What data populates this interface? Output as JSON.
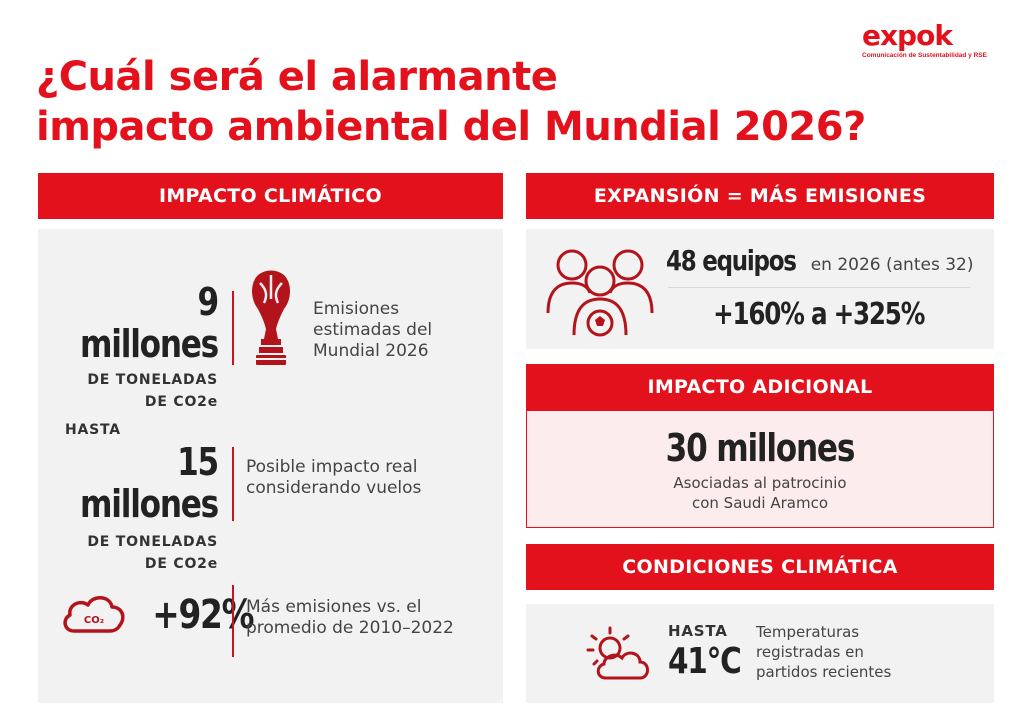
{
  "brand": {
    "name": "expok",
    "tagline": "Comunicación de Sustentabilidad y RSE"
  },
  "title": {
    "line1": "¿Cuál será el alarmante",
    "line2": "impacto ambiental del Mundial 2026?"
  },
  "climate_impact": {
    "header": "IMPACTO CLIMÁTICO",
    "stat1": {
      "value": "9 millones",
      "unit_line1": "DE TONELADAS",
      "unit_line2": "DE CO2e",
      "icon": "world-cup-trophy-icon",
      "desc_line1": "Emisiones",
      "desc_line2": "estimadas del",
      "desc_line3": "Mundial 2026"
    },
    "stat2": {
      "prefix": "HASTA",
      "value": "15 millones",
      "unit_line1": "DE TONELADAS",
      "unit_line2": "DE CO2e",
      "desc_line1": "Posible impacto real",
      "desc_line2": "considerando vuelos"
    },
    "stat3": {
      "icon": "co2-cloud-icon",
      "icon_label": "CO₂",
      "value": "+92%",
      "desc_line1": "Más emisiones vs. el",
      "desc_line2": "promedio de 2010–2022"
    }
  },
  "expansion": {
    "header": "EXPANSIÓN = MÁS EMISIONES",
    "icon": "players-football-icon",
    "teams_value": "48 equipos",
    "teams_suffix": "en 2026 (antes 32)",
    "range": "+160% a +325%"
  },
  "additional": {
    "header": "IMPACTO ADICIONAL",
    "value": "30 millones",
    "desc_line1": "Asociadas al patrocinio",
    "desc_line2": "con Saudi Aramco"
  },
  "conditions": {
    "header": "CONDICIONES CLIMÁTICA",
    "icon": "sun-cloud-icon",
    "prefix": "HASTA",
    "value": "41°C",
    "desc_line1": "Temperaturas",
    "desc_line2": "registradas en",
    "desc_line3": "partidos recientes"
  },
  "colors": {
    "accent": "#e3111c",
    "dark_red": "#b3141b",
    "panel_bg": "#f2f2f2",
    "highlight_bg": "#fdeced"
  }
}
